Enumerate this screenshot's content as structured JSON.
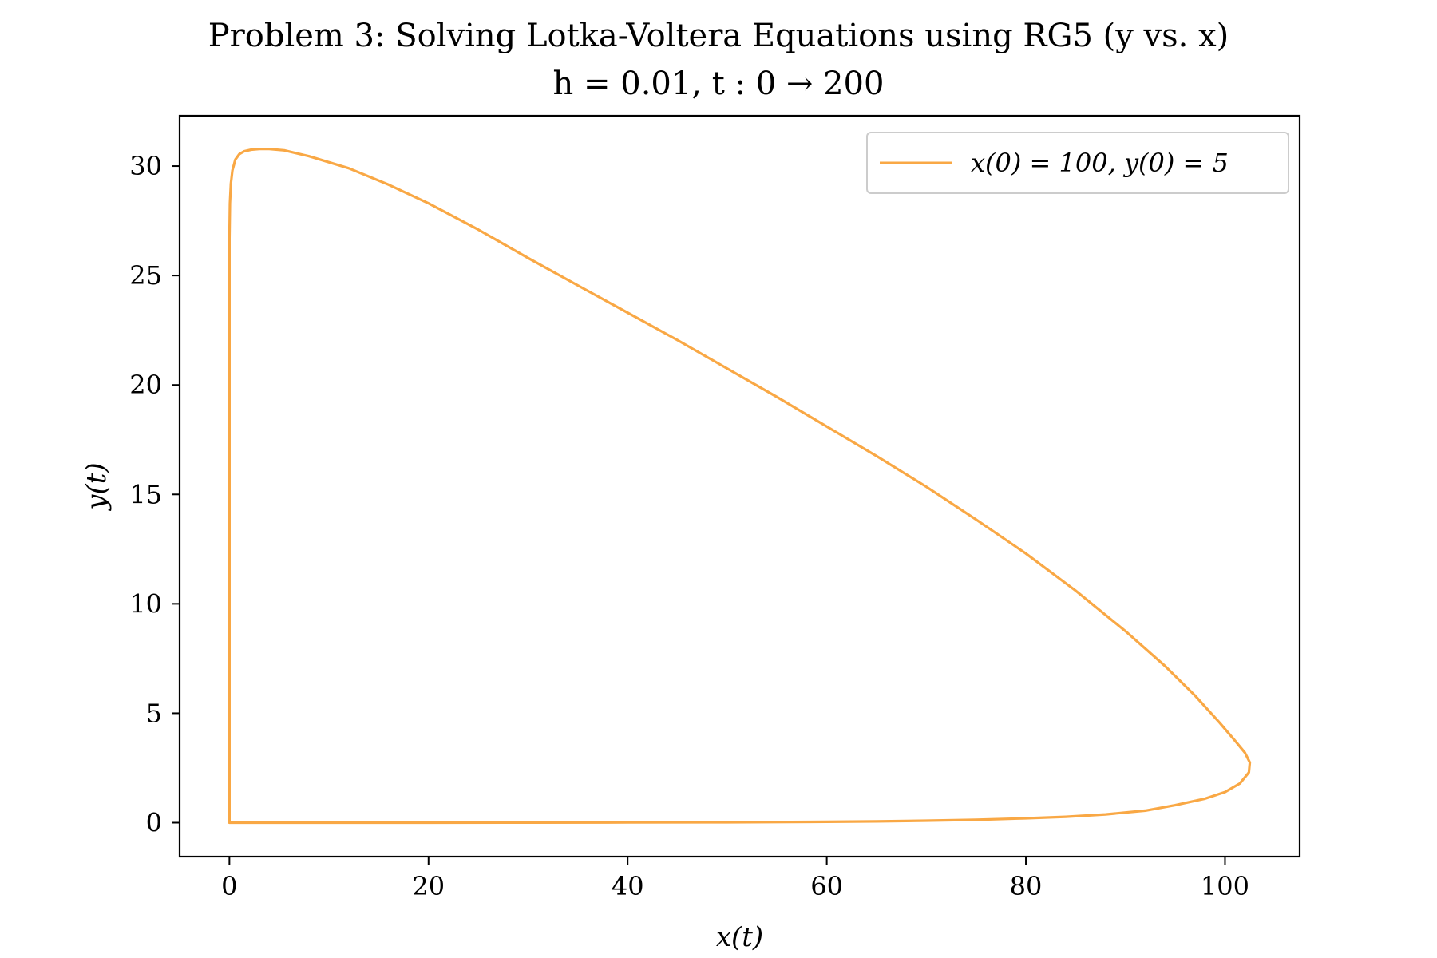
{
  "chart_data": {
    "type": "line",
    "title": "Problem 3: Solving Lotka-Voltera Equations using RG5 (y vs. x)",
    "subtitle": "h = 0.01, t : 0 → 200",
    "xlabel": "x(t)",
    "ylabel": "y(t)",
    "xlim": [
      -5,
      107.5
    ],
    "ylim": [
      -1.55,
      32.3
    ],
    "xticks": [
      0,
      20,
      40,
      60,
      80,
      100
    ],
    "yticks": [
      0,
      5,
      10,
      15,
      20,
      25,
      30
    ],
    "xtick_labels": [
      "0",
      "20",
      "40",
      "60",
      "80",
      "100"
    ],
    "ytick_labels": [
      "0",
      "5",
      "10",
      "15",
      "20",
      "25",
      "30"
    ],
    "grid": false,
    "legend_position": "top-right",
    "series": [
      {
        "name": "x(0) = 100, y(0) = 5",
        "color": "#f9a845",
        "x": [
          0.0,
          0.0,
          0.0,
          0.05,
          0.15,
          0.3,
          0.6,
          1.0,
          1.5,
          2.2,
          3.0,
          4.0,
          5.5,
          8.0,
          12.0,
          16.0,
          20.0,
          25.0,
          30.0,
          35.0,
          40.0,
          45.0,
          50.0,
          55.0,
          60.0,
          65.0,
          70.0,
          75.0,
          80.0,
          85.0,
          90.0,
          94.0,
          97.0,
          99.5,
          101.0,
          102.0,
          102.5,
          102.4,
          101.5,
          100.0,
          98.0,
          95.0,
          92.0,
          88.0,
          84.0,
          80.0,
          75.0,
          70.0,
          65.0,
          60.0,
          50.0,
          40.0,
          30.0,
          20.0,
          10.0,
          0.0
        ],
        "y": [
          0.0,
          10.0,
          26.7,
          28.3,
          29.2,
          29.8,
          30.3,
          30.55,
          30.68,
          30.75,
          30.78,
          30.78,
          30.72,
          30.45,
          29.9,
          29.15,
          28.3,
          27.1,
          25.8,
          24.55,
          23.3,
          22.05,
          20.75,
          19.45,
          18.1,
          16.75,
          15.35,
          13.85,
          12.3,
          10.6,
          8.75,
          7.15,
          5.8,
          4.55,
          3.75,
          3.2,
          2.75,
          2.3,
          1.8,
          1.4,
          1.1,
          0.8,
          0.55,
          0.38,
          0.27,
          0.2,
          0.13,
          0.09,
          0.06,
          0.04,
          0.02,
          0.01,
          0.005,
          0.002,
          0.001,
          0.0
        ]
      }
    ]
  }
}
